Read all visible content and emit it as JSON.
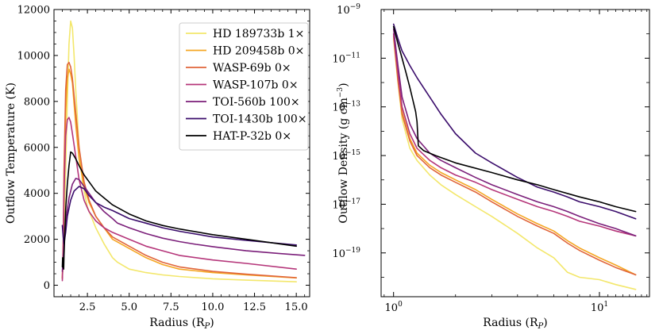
{
  "chart_data": [
    {
      "type": "line",
      "panel": "left",
      "xlabel": "Radius (R",
      "xlabel_sub": "P",
      "xlabel_tail": ")",
      "ylabel": "Outflow Temperature (K)",
      "xlim": [
        0.5,
        15.8
      ],
      "ylim": [
        -500,
        12000
      ],
      "xticks": [
        2.5,
        5.0,
        7.5,
        10.0,
        12.5,
        15.0
      ],
      "xtick_labels": [
        "2.5",
        "5.0",
        "7.5",
        "10.0",
        "12.5",
        "15.0"
      ],
      "yticks": [
        0,
        2000,
        4000,
        6000,
        8000,
        10000,
        12000
      ],
      "ytick_labels": [
        "0",
        "2000",
        "4000",
        "6000",
        "8000",
        "10000",
        "12000"
      ],
      "legend": "top-right",
      "series": [
        {
          "name": "HD 189733b 1×",
          "color": "#f3e76b",
          "x": [
            1.0,
            1.05,
            1.1,
            1.2,
            1.3,
            1.4,
            1.5,
            1.6,
            1.7,
            1.8,
            2.0,
            2.2,
            2.5,
            3.0,
            3.5,
            4.0,
            4.3,
            5.0,
            6.0,
            7.0,
            8.0,
            10.0,
            12.0,
            15.0
          ],
          "y": [
            300,
            1000,
            2500,
            5000,
            8000,
            10500,
            11500,
            11200,
            10000,
            8500,
            6000,
            4500,
            3400,
            2500,
            1800,
            1200,
            1000,
            700,
            550,
            450,
            380,
            280,
            220,
            150
          ]
        },
        {
          "name": "HD 209458b 0×",
          "color": "#f5a623",
          "x": [
            1.0,
            1.05,
            1.1,
            1.2,
            1.3,
            1.4,
            1.5,
            1.6,
            1.8,
            2.0,
            2.3,
            2.6,
            3.0,
            3.5,
            4.0,
            5.0,
            6.0,
            7.0,
            8.0,
            10.0,
            12.0,
            15.0
          ],
          "y": [
            300,
            1500,
            4000,
            7500,
            9000,
            9400,
            9200,
            8800,
            7000,
            5500,
            4300,
            3600,
            3000,
            2500,
            2000,
            1600,
            1200,
            900,
            700,
            550,
            450,
            320
          ]
        },
        {
          "name": "WASP-69b 0×",
          "color": "#e0653a",
          "x": [
            1.0,
            1.05,
            1.1,
            1.2,
            1.3,
            1.4,
            1.5,
            1.6,
            1.8,
            2.0,
            2.3,
            2.6,
            3.0,
            3.5,
            4.0,
            5.0,
            6.0,
            7.0,
            8.0,
            10.0,
            12.0,
            15.0
          ],
          "y": [
            300,
            1800,
            5000,
            8500,
            9600,
            9700,
            9500,
            9000,
            7500,
            6000,
            4500,
            3700,
            3000,
            2500,
            2100,
            1700,
            1300,
            1000,
            800,
            600,
            480,
            330
          ]
        },
        {
          "name": "WASP-107b 0×",
          "color": "#b5367a",
          "x": [
            1.0,
            1.05,
            1.1,
            1.2,
            1.3,
            1.4,
            1.5,
            1.6,
            1.8,
            2.0,
            2.3,
            2.6,
            3.0,
            3.5,
            4.0,
            5.0,
            6.0,
            7.0,
            8.0,
            10.0,
            12.0,
            15.0
          ],
          "y": [
            200,
            1500,
            4000,
            6500,
            7200,
            7300,
            7100,
            6600,
            5600,
            4600,
            3700,
            3200,
            2800,
            2500,
            2300,
            2000,
            1700,
            1500,
            1300,
            1100,
            950,
            700
          ]
        },
        {
          "name": "TOI-560b 100×",
          "color": "#7b1f7a",
          "x": [
            1.0,
            1.1,
            1.2,
            1.4,
            1.6,
            1.8,
            2.0,
            2.3,
            2.6,
            3.0,
            3.5,
            4.0,
            4.3,
            5.0,
            6.0,
            7.0,
            8.0,
            9.0,
            10.0,
            12.0,
            14.0,
            15.5
          ],
          "y": [
            600,
            1700,
            2800,
            3800,
            4400,
            4650,
            4600,
            4300,
            4000,
            3600,
            3200,
            2900,
            2700,
            2500,
            2250,
            2050,
            1900,
            1780,
            1680,
            1500,
            1380,
            1300
          ]
        },
        {
          "name": "TOI-1430b 100×",
          "color": "#3a0c6b",
          "x": [
            1.0,
            1.05,
            1.1,
            1.2,
            1.3,
            1.5,
            1.7,
            2.0,
            2.3,
            2.6,
            3.0,
            3.5,
            4.0,
            5.0,
            6.0,
            7.0,
            8.0,
            10.0,
            12.0,
            15.0
          ],
          "y": [
            2600,
            2100,
            1800,
            2300,
            3000,
            3700,
            4100,
            4300,
            4200,
            3900,
            3600,
            3400,
            3250,
            2900,
            2700,
            2500,
            2350,
            2100,
            1950,
            1750
          ]
        },
        {
          "name": "HAT-P-32b 0×",
          "color": "#000000",
          "x": [
            1.0,
            1.02,
            1.05,
            1.08,
            1.1,
            1.15,
            1.2,
            1.3,
            1.4,
            1.5,
            1.6,
            1.8,
            2.0,
            2.3,
            2.6,
            3.0,
            3.5,
            4.0,
            5.0,
            6.0,
            7.0,
            8.0,
            10.0,
            12.0,
            15.0
          ],
          "y": [
            800,
            1200,
            900,
            700,
            1300,
            2300,
            3300,
            4400,
            5200,
            5800,
            5750,
            5500,
            5200,
            4800,
            4500,
            4100,
            3800,
            3500,
            3100,
            2800,
            2600,
            2450,
            2200,
            2000,
            1700
          ]
        }
      ]
    },
    {
      "type": "line",
      "panel": "right",
      "xscale": "log",
      "yscale": "log",
      "xlabel": "Radius (R",
      "xlabel_sub": "P",
      "xlabel_tail": ")",
      "ylabel": "Outflow Density (g cm",
      "ylabel_sup": "−3",
      "ylabel_tail": ")",
      "xlim": [
        0.87,
        17.5
      ],
      "ylim_exp": [
        -20.8,
        -9.0
      ],
      "xticks": [
        1,
        10
      ],
      "xtick_bases": [
        "10",
        "10"
      ],
      "xtick_exps": [
        "0",
        "1"
      ],
      "yticks_exp": [
        -19,
        -17,
        -15,
        -13,
        -11,
        -9
      ],
      "ytick_bases": [
        "10",
        "10",
        "10",
        "10",
        "10",
        "10"
      ],
      "ytick_exps": [
        "−19",
        "−17",
        "−15",
        "−13",
        "−11",
        "−9"
      ],
      "series": [
        {
          "name": "HD 189733b 1×",
          "color": "#f3e76b",
          "x": [
            1.0,
            1.05,
            1.1,
            1.2,
            1.3,
            1.5,
            1.7,
            2.0,
            2.5,
            3.0,
            4.0,
            5.0,
            6.0,
            7.0,
            8.0,
            10.0,
            12.0,
            15.0
          ],
          "log_y": [
            -10.2,
            -12.0,
            -13.5,
            -14.7,
            -15.2,
            -15.8,
            -16.2,
            -16.6,
            -17.1,
            -17.5,
            -18.2,
            -18.8,
            -19.2,
            -19.8,
            -20.0,
            -20.1,
            -20.3,
            -20.5
          ]
        },
        {
          "name": "HD 209458b 0×",
          "color": "#f5a623",
          "x": [
            1.0,
            1.05,
            1.1,
            1.2,
            1.3,
            1.5,
            1.7,
            2.0,
            2.5,
            3.0,
            4.0,
            5.0,
            6.0,
            7.0,
            8.0,
            10.0,
            12.0,
            15.0
          ],
          "log_y": [
            -10.0,
            -11.8,
            -13.2,
            -14.3,
            -14.9,
            -15.4,
            -15.7,
            -16.0,
            -16.4,
            -16.8,
            -17.4,
            -17.8,
            -18.1,
            -18.5,
            -18.8,
            -19.2,
            -19.5,
            -19.9
          ]
        },
        {
          "name": "WASP-69b 0×",
          "color": "#e0653a",
          "x": [
            1.0,
            1.05,
            1.1,
            1.2,
            1.3,
            1.5,
            1.7,
            2.0,
            2.5,
            3.0,
            4.0,
            5.0,
            6.0,
            7.0,
            8.0,
            10.0,
            12.0,
            15.0
          ],
          "log_y": [
            -10.1,
            -11.9,
            -13.3,
            -14.4,
            -15.0,
            -15.5,
            -15.8,
            -16.1,
            -16.5,
            -16.9,
            -17.5,
            -17.9,
            -18.2,
            -18.6,
            -18.9,
            -19.3,
            -19.6,
            -19.9
          ]
        },
        {
          "name": "WASP-107b 0×",
          "color": "#b5367a",
          "x": [
            1.0,
            1.05,
            1.1,
            1.2,
            1.3,
            1.5,
            1.7,
            2.0,
            2.5,
            3.0,
            4.0,
            5.0,
            6.0,
            7.0,
            8.0,
            10.0,
            12.0,
            15.0
          ],
          "log_y": [
            -10.0,
            -11.6,
            -13.0,
            -14.1,
            -14.7,
            -15.2,
            -15.5,
            -15.8,
            -16.1,
            -16.4,
            -16.8,
            -17.1,
            -17.3,
            -17.5,
            -17.7,
            -17.9,
            -18.1,
            -18.3
          ]
        },
        {
          "name": "TOI-560b 100×",
          "color": "#7b1f7a",
          "x": [
            1.0,
            1.05,
            1.1,
            1.2,
            1.3,
            1.5,
            1.7,
            2.0,
            2.5,
            3.0,
            4.0,
            5.0,
            6.0,
            7.0,
            8.0,
            10.0,
            12.0,
            15.0
          ],
          "log_y": [
            -9.8,
            -11.3,
            -12.6,
            -13.7,
            -14.3,
            -14.9,
            -15.2,
            -15.5,
            -15.9,
            -16.2,
            -16.6,
            -16.9,
            -17.1,
            -17.3,
            -17.5,
            -17.8,
            -18.0,
            -18.3
          ]
        },
        {
          "name": "TOI-1430b 100×",
          "color": "#3a0c6b",
          "x": [
            1.0,
            1.05,
            1.1,
            1.2,
            1.3,
            1.5,
            1.7,
            2.0,
            2.5,
            3.0,
            4.0,
            5.0,
            6.0,
            7.0,
            8.0,
            10.0,
            12.0,
            15.0
          ],
          "log_y": [
            -9.6,
            -10.2,
            -10.7,
            -11.3,
            -11.8,
            -12.6,
            -13.3,
            -14.1,
            -14.9,
            -15.3,
            -15.9,
            -16.3,
            -16.5,
            -16.7,
            -16.9,
            -17.1,
            -17.3,
            -17.6
          ]
        },
        {
          "name": "HAT-P-32b 0×",
          "color": "#000000",
          "x": [
            1.0,
            1.05,
            1.1,
            1.15,
            1.2,
            1.28,
            1.3,
            1.32,
            1.4,
            1.6,
            2.0,
            3.0,
            4.0,
            5.0,
            6.0,
            8.0,
            10.0,
            12.0,
            15.0
          ],
          "log_y": [
            -9.7,
            -10.4,
            -11.0,
            -11.6,
            -12.2,
            -13.2,
            -13.6,
            -14.6,
            -14.8,
            -15.0,
            -15.3,
            -15.7,
            -16.0,
            -16.2,
            -16.4,
            -16.7,
            -16.9,
            -17.1,
            -17.3
          ]
        }
      ]
    }
  ]
}
